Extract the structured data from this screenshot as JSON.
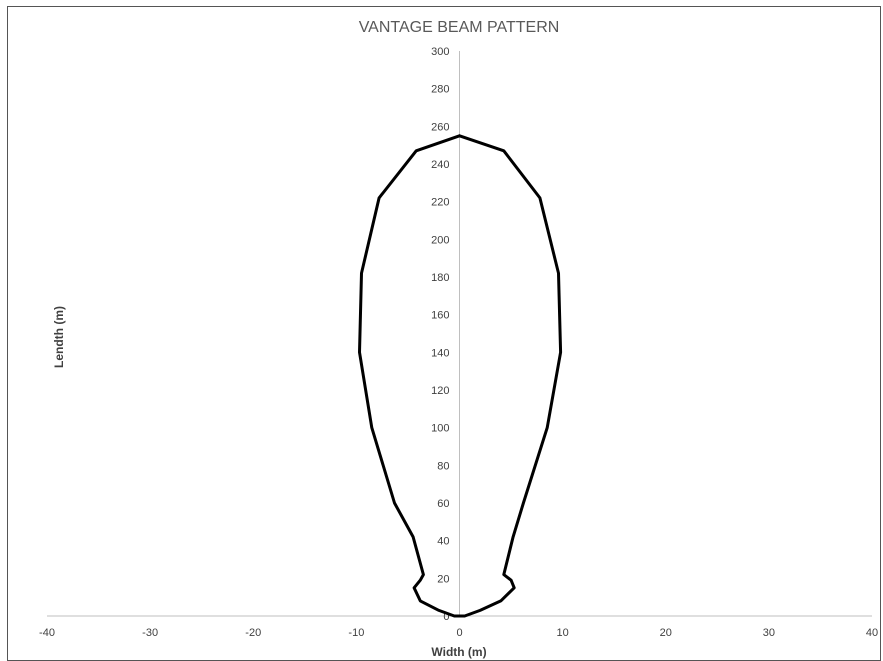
{
  "chart_data": {
    "type": "line",
    "title": "VANTAGE BEAM PATTERN",
    "xlabel": "Width (m)",
    "ylabel": "Lendth (m)",
    "xlim": [
      -40,
      40
    ],
    "ylim": [
      0,
      300
    ],
    "x_ticks": [
      -40,
      -30,
      -20,
      -10,
      0,
      10,
      20,
      30,
      40
    ],
    "y_ticks": [
      0,
      20,
      40,
      60,
      80,
      100,
      120,
      140,
      160,
      180,
      200,
      220,
      240,
      260,
      280,
      300
    ],
    "grid": false,
    "legend": "none",
    "series": [
      {
        "color": "#000000",
        "points": [
          {
            "x": 0,
            "y": 255
          },
          {
            "x": 4.3,
            "y": 247
          },
          {
            "x": 7.8,
            "y": 222
          },
          {
            "x": 9.6,
            "y": 182
          },
          {
            "x": 9.8,
            "y": 140
          },
          {
            "x": 8.5,
            "y": 100
          },
          {
            "x": 6.2,
            "y": 60
          },
          {
            "x": 5.2,
            "y": 42
          },
          {
            "x": 4.3,
            "y": 22
          },
          {
            "x": 5.0,
            "y": 19
          },
          {
            "x": 5.3,
            "y": 15
          },
          {
            "x": 4.0,
            "y": 8
          },
          {
            "x": 2.0,
            "y": 3
          },
          {
            "x": 0.5,
            "y": 0
          },
          {
            "x": -0.5,
            "y": 0
          },
          {
            "x": -2.0,
            "y": 3
          },
          {
            "x": -3.8,
            "y": 8
          },
          {
            "x": -4.4,
            "y": 15
          },
          {
            "x": -3.8,
            "y": 19
          },
          {
            "x": -3.5,
            "y": 22
          },
          {
            "x": -4.5,
            "y": 42
          },
          {
            "x": -6.3,
            "y": 60
          },
          {
            "x": -8.5,
            "y": 100
          },
          {
            "x": -9.7,
            "y": 140
          },
          {
            "x": -9.5,
            "y": 182
          },
          {
            "x": -7.8,
            "y": 222
          },
          {
            "x": -4.2,
            "y": 247
          },
          {
            "x": 0,
            "y": 255
          }
        ]
      }
    ]
  }
}
